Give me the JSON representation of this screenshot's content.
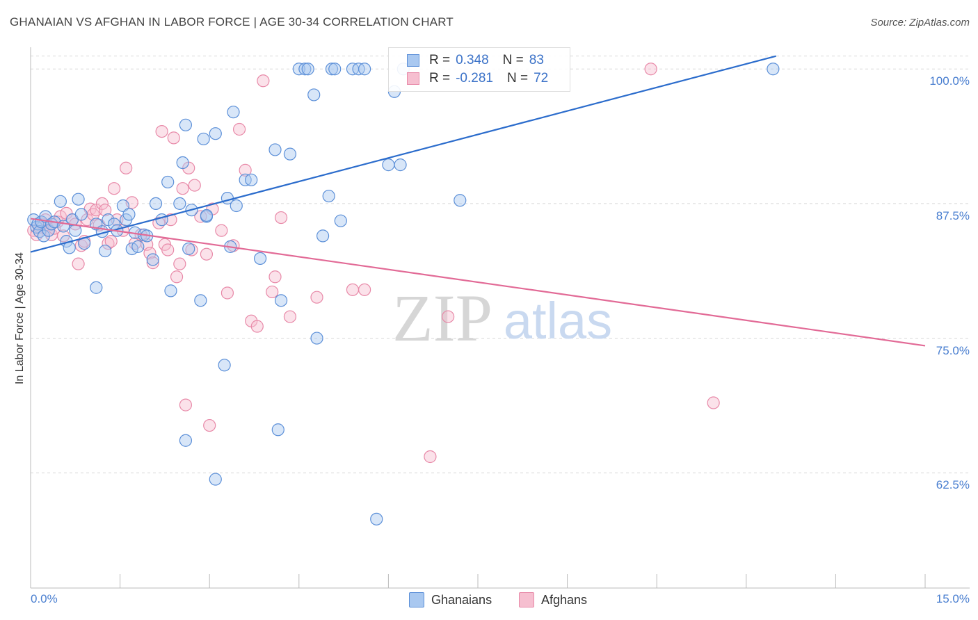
{
  "title": "GHANAIAN VS AFGHAN IN LABOR FORCE | AGE 30-34 CORRELATION CHART",
  "source": "Source: ZipAtlas.com",
  "colors": {
    "blue_fill": "#a9c8f0",
    "blue_edge": "#5b8fd8",
    "blue_line": "#2b6ccc",
    "pink_fill": "#f6bfd0",
    "pink_edge": "#e889a8",
    "pink_line": "#e26a96",
    "grid": "#d8d8d8",
    "tick": "#4a7fd0"
  },
  "legend": {
    "rows": [
      {
        "r_label": "R =",
        "r_value": "0.348",
        "n_label": "N =",
        "n_value": "83"
      },
      {
        "r_label": "R =",
        "r_value": "-0.281",
        "n_label": "N =",
        "n_value": "72"
      }
    ]
  },
  "watermark": {
    "zip": "ZIP",
    "atlas": "atlas"
  },
  "chart_data": {
    "type": "scatter",
    "title": "GHANAIAN VS AFGHAN IN LABOR FORCE | AGE 30-34 CORRELATION CHART",
    "xlabel": "",
    "ylabel": "In Labor Force | Age 30-34",
    "xlim": [
      0,
      15
    ],
    "ylim": [
      51.8,
      101.5
    ],
    "x_tick_labels": [
      "0.0%",
      "15.0%"
    ],
    "y_ticks": [
      62.5,
      75.0,
      87.5,
      100.0
    ],
    "y_tick_labels": [
      "62.5%",
      "75.0%",
      "87.5%",
      "100.0%"
    ],
    "legend_position": "top-center",
    "series": [
      {
        "name": "Ghanaians",
        "r": 0.348,
        "n": 83,
        "trend": {
          "x": [
            0,
            12.5
          ],
          "y": [
            83.0,
            101.2
          ]
        },
        "points": [
          [
            0.05,
            86.0
          ],
          [
            0.1,
            85.3
          ],
          [
            0.12,
            85.6
          ],
          [
            0.15,
            84.9
          ],
          [
            0.18,
            85.8
          ],
          [
            0.22,
            84.5
          ],
          [
            0.25,
            86.3
          ],
          [
            0.3,
            85.0
          ],
          [
            0.35,
            85.6
          ],
          [
            0.4,
            85.8
          ],
          [
            0.5,
            87.7
          ],
          [
            0.6,
            84.0
          ],
          [
            0.65,
            83.4
          ],
          [
            0.7,
            86.0
          ],
          [
            0.75,
            85.0
          ],
          [
            0.8,
            87.9
          ],
          [
            0.85,
            86.5
          ],
          [
            0.9,
            83.8
          ],
          [
            1.1,
            85.6
          ],
          [
            1.2,
            84.9
          ],
          [
            1.25,
            83.1
          ],
          [
            1.3,
            86.0
          ],
          [
            1.4,
            85.6
          ],
          [
            1.45,
            85.0
          ],
          [
            1.55,
            87.3
          ],
          [
            1.6,
            86.0
          ],
          [
            1.65,
            86.5
          ],
          [
            1.7,
            83.3
          ],
          [
            1.75,
            84.8
          ],
          [
            1.8,
            83.5
          ],
          [
            1.9,
            84.6
          ],
          [
            1.95,
            84.5
          ],
          [
            2.05,
            82.3
          ],
          [
            2.1,
            87.5
          ],
          [
            2.2,
            86.0
          ],
          [
            2.3,
            89.5
          ],
          [
            2.35,
            79.4
          ],
          [
            2.5,
            87.5
          ],
          [
            2.55,
            91.3
          ],
          [
            2.6,
            94.8
          ],
          [
            2.65,
            83.3
          ],
          [
            2.7,
            86.9
          ],
          [
            2.85,
            78.5
          ],
          [
            2.9,
            93.5
          ],
          [
            2.95,
            86.3
          ],
          [
            3.1,
            94.0
          ],
          [
            3.25,
            72.5
          ],
          [
            3.3,
            88.0
          ],
          [
            3.35,
            83.5
          ],
          [
            3.45,
            87.3
          ],
          [
            3.6,
            89.7
          ],
          [
            3.7,
            89.7
          ],
          [
            3.85,
            82.4
          ],
          [
            4.1,
            92.5
          ],
          [
            4.2,
            78.5
          ],
          [
            4.35,
            92.1
          ],
          [
            4.5,
            100.0
          ],
          [
            4.6,
            100.0
          ],
          [
            4.65,
            100.0
          ],
          [
            4.75,
            97.6
          ],
          [
            4.8,
            75.0
          ],
          [
            4.9,
            84.5
          ],
          [
            5.0,
            88.2
          ],
          [
            5.05,
            100.0
          ],
          [
            5.1,
            100.0
          ],
          [
            5.2,
            85.9
          ],
          [
            5.4,
            100.0
          ],
          [
            5.5,
            100.0
          ],
          [
            5.6,
            100.0
          ],
          [
            5.8,
            58.2
          ],
          [
            6.0,
            91.1
          ],
          [
            6.1,
            97.9
          ],
          [
            6.2,
            91.1
          ],
          [
            6.25,
            100.0
          ],
          [
            7.2,
            87.8
          ],
          [
            12.45,
            100.0
          ],
          [
            3.4,
            96.0
          ],
          [
            2.6,
            65.5
          ],
          [
            3.1,
            61.9
          ],
          [
            4.15,
            66.5
          ],
          [
            1.1,
            79.7
          ],
          [
            0.55,
            85.4
          ],
          [
            2.95,
            86.4
          ]
        ]
      },
      {
        "name": "Afghans",
        "r": -0.281,
        "n": 72,
        "trend": {
          "x": [
            0,
            15
          ],
          "y": [
            86.1,
            74.3
          ]
        },
        "points": [
          [
            0.05,
            85.0
          ],
          [
            0.1,
            84.6
          ],
          [
            0.15,
            85.3
          ],
          [
            0.2,
            85.6
          ],
          [
            0.3,
            85.0
          ],
          [
            0.35,
            84.6
          ],
          [
            0.45,
            85.8
          ],
          [
            0.5,
            86.3
          ],
          [
            0.55,
            84.5
          ],
          [
            0.6,
            86.6
          ],
          [
            0.7,
            86.0
          ],
          [
            0.75,
            85.6
          ],
          [
            0.8,
            81.9
          ],
          [
            0.85,
            83.6
          ],
          [
            0.9,
            84.0
          ],
          [
            0.95,
            86.0
          ],
          [
            1.0,
            87.0
          ],
          [
            1.05,
            86.5
          ],
          [
            1.1,
            86.9
          ],
          [
            1.15,
            85.5
          ],
          [
            1.2,
            87.5
          ],
          [
            1.3,
            83.8
          ],
          [
            1.35,
            84.0
          ],
          [
            1.4,
            88.9
          ],
          [
            1.45,
            86.0
          ],
          [
            1.55,
            85.0
          ],
          [
            1.6,
            90.8
          ],
          [
            1.7,
            87.6
          ],
          [
            1.75,
            83.8
          ],
          [
            1.85,
            84.6
          ],
          [
            1.95,
            83.7
          ],
          [
            2.0,
            82.9
          ],
          [
            2.05,
            82.0
          ],
          [
            2.15,
            85.7
          ],
          [
            2.2,
            94.2
          ],
          [
            2.25,
            83.7
          ],
          [
            2.3,
            83.2
          ],
          [
            2.35,
            86.0
          ],
          [
            2.4,
            93.6
          ],
          [
            2.45,
            80.7
          ],
          [
            2.5,
            81.9
          ],
          [
            2.55,
            88.9
          ],
          [
            2.6,
            68.8
          ],
          [
            2.65,
            90.8
          ],
          [
            2.7,
            83.2
          ],
          [
            2.75,
            89.2
          ],
          [
            2.85,
            86.3
          ],
          [
            2.95,
            82.8
          ],
          [
            3.0,
            66.9
          ],
          [
            3.05,
            87.0
          ],
          [
            3.2,
            85.0
          ],
          [
            3.3,
            79.2
          ],
          [
            3.4,
            83.6
          ],
          [
            3.5,
            94.4
          ],
          [
            3.6,
            90.6
          ],
          [
            3.7,
            76.6
          ],
          [
            3.8,
            76.1
          ],
          [
            3.9,
            98.9
          ],
          [
            4.05,
            79.3
          ],
          [
            4.1,
            80.7
          ],
          [
            4.2,
            86.2
          ],
          [
            4.35,
            77.0
          ],
          [
            4.8,
            78.8
          ],
          [
            5.4,
            79.5
          ],
          [
            5.6,
            79.5
          ],
          [
            6.7,
            64.0
          ],
          [
            7.0,
            77.0
          ],
          [
            10.4,
            100.0
          ],
          [
            11.45,
            69.0
          ],
          [
            0.25,
            86.0
          ],
          [
            0.4,
            85.2
          ],
          [
            1.25,
            86.9
          ]
        ]
      }
    ]
  }
}
